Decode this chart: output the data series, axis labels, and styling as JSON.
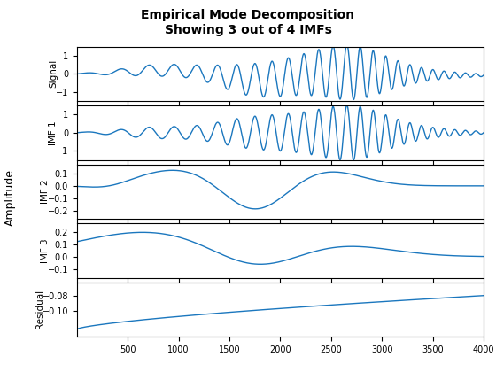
{
  "title_line1": "Empirical Mode Decomposition",
  "title_line2": "Showing 3 out of 4 IMFs",
  "line_color": "#1B77BE",
  "line_width": 1.0,
  "ylabel_signal": "Signal",
  "ylabel_imf1": "IMF 1",
  "ylabel_imf2": "IMF 2",
  "ylabel_imf3": "IMF 3",
  "ylabel_residual": "Residual",
  "ylabel_amplitude": "Amplitude",
  "xlim": [
    0,
    4000
  ],
  "yticks_signal": [
    -1,
    0,
    1
  ],
  "yticks_imf1": [
    -1,
    0,
    1
  ],
  "yticks_imf2": [
    -0.2,
    -0.1,
    0,
    0.1
  ],
  "yticks_imf3": [
    -0.1,
    0,
    0.1,
    0.2
  ],
  "yticks_residual": [
    -0.1,
    -0.08
  ],
  "xticks": [
    500,
    1000,
    1500,
    2000,
    2500,
    3000,
    3500,
    4000
  ],
  "background_color": "#ffffff",
  "fig_width": 5.6,
  "fig_height": 4.2,
  "dpi": 100
}
